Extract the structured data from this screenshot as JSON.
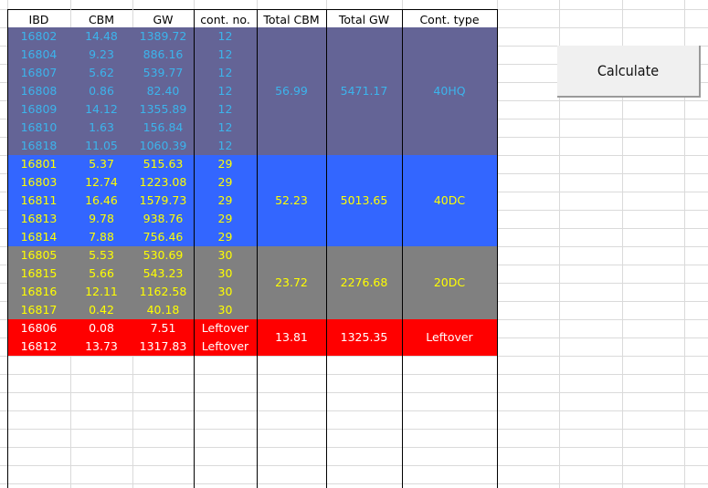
{
  "headers": [
    "IBD",
    "CBM",
    "GW",
    "cont. no.",
    "Total CBM",
    "Total GW",
    "Cont. type"
  ],
  "groups": [
    {
      "bg": "#646496",
      "fg": "#3cb4ec",
      "total_cbm": "56.99",
      "total_gw": "5471.17",
      "cont_type": "40HQ",
      "rows": [
        [
          "16802",
          "14.48",
          "1389.72",
          "12"
        ],
        [
          "16804",
          "9.23",
          "886.16",
          "12"
        ],
        [
          "16807",
          "5.62",
          "539.77",
          "12"
        ],
        [
          "16808",
          "0.86",
          "82.40",
          "12"
        ],
        [
          "16809",
          "14.12",
          "1355.89",
          "12"
        ],
        [
          "16810",
          "1.63",
          "156.84",
          "12"
        ],
        [
          "16818",
          "11.05",
          "1060.39",
          "12"
        ]
      ]
    },
    {
      "bg": "#3366ff",
      "fg": "#ffff00",
      "total_cbm": "52.23",
      "total_gw": "5013.65",
      "cont_type": "40DC",
      "rows": [
        [
          "16801",
          "5.37",
          "515.63",
          "29"
        ],
        [
          "16803",
          "12.74",
          "1223.08",
          "29"
        ],
        [
          "16811",
          "16.46",
          "1579.73",
          "29"
        ],
        [
          "16813",
          "9.78",
          "938.76",
          "29"
        ],
        [
          "16814",
          "7.88",
          "756.46",
          "29"
        ]
      ]
    },
    {
      "bg": "#808080",
      "fg": "#ffff00",
      "total_cbm": "23.72",
      "total_gw": "2276.68",
      "cont_type": "20DC",
      "rows": [
        [
          "16805",
          "5.53",
          "530.69",
          "30"
        ],
        [
          "16815",
          "5.66",
          "543.23",
          "30"
        ],
        [
          "16816",
          "12.11",
          "1162.58",
          "30"
        ],
        [
          "16817",
          "0.42",
          "40.18",
          "30"
        ]
      ]
    },
    {
      "bg": "#ff0000",
      "fg": "#ffffff",
      "total_cbm": "13.81",
      "total_gw": "1325.35",
      "cont_type": "Leftover",
      "rows": [
        [
          "16806",
          "0.08",
          "7.51",
          "Leftover"
        ],
        [
          "16812",
          "13.73",
          "1317.83",
          "Leftover"
        ]
      ]
    }
  ],
  "button": {
    "label": "Calculate"
  }
}
